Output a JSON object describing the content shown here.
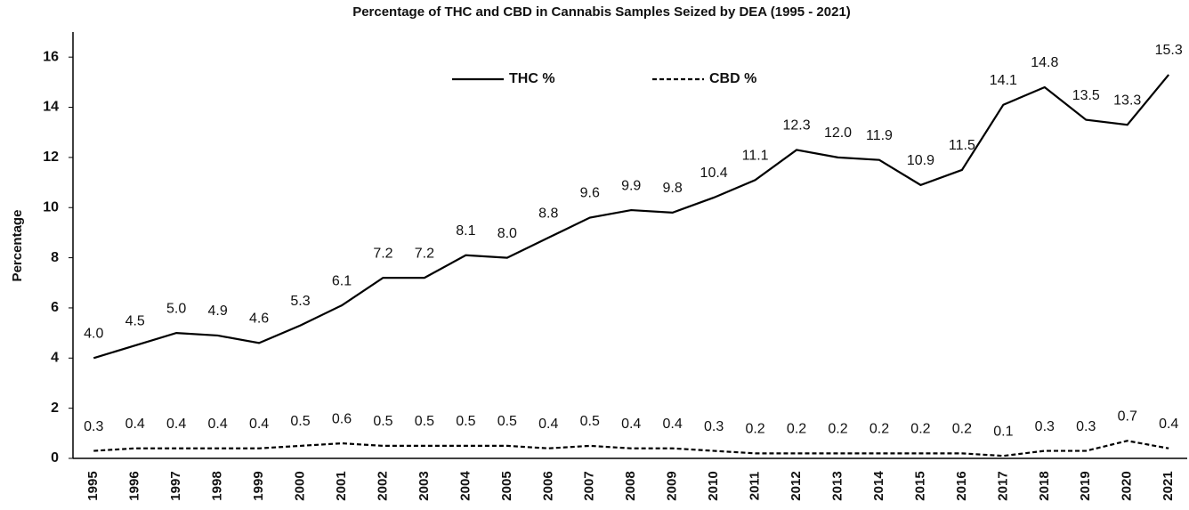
{
  "chart_data": {
    "type": "line",
    "title": "Percentage of THC and CBD in Cannabis Samples Seized by DEA (1995 - 2021)",
    "y_label": "Percentage",
    "categories": [
      "1995",
      "1996",
      "1997",
      "1998",
      "1999",
      "2000",
      "2001",
      "2002",
      "2003",
      "2004",
      "2005",
      "2006",
      "2007",
      "2008",
      "2009",
      "2010",
      "2011",
      "2012",
      "2013",
      "2014",
      "2015",
      "2016",
      "2017",
      "2018",
      "2019",
      "2020",
      "2021"
    ],
    "series": [
      {
        "name": "THC %",
        "color": "#000000",
        "line_style": "solid",
        "values": [
          4.0,
          4.5,
          5.0,
          4.9,
          4.6,
          5.3,
          6.1,
          7.2,
          7.2,
          8.1,
          8.0,
          8.8,
          9.6,
          9.9,
          9.8,
          10.4,
          11.1,
          12.3,
          12.0,
          11.9,
          10.9,
          11.5,
          14.1,
          14.8,
          13.5,
          13.3,
          15.3
        ],
        "value_labels": [
          "4.0",
          "4.5",
          "5.0",
          "4.9",
          "4.6",
          "5.3",
          "6.1",
          "7.2",
          "7.2",
          "8.1",
          "8.0",
          "8.8",
          "9.6",
          "9.9",
          "9.8",
          "10.4",
          "11.1",
          "12.3",
          "12.0",
          "11.9",
          "10.9",
          "11.5",
          "14.1",
          "14.8",
          "13.5",
          "13.3",
          "15.3"
        ]
      },
      {
        "name": "CBD %",
        "color": "#000000",
        "line_style": "dashed",
        "values": [
          0.3,
          0.4,
          0.4,
          0.4,
          0.4,
          0.5,
          0.6,
          0.5,
          0.5,
          0.5,
          0.5,
          0.4,
          0.5,
          0.4,
          0.4,
          0.3,
          0.2,
          0.2,
          0.2,
          0.2,
          0.2,
          0.2,
          0.1,
          0.3,
          0.3,
          0.7,
          0.4
        ],
        "value_labels": [
          "0.3",
          "0.4",
          "0.4",
          "0.4",
          "0.4",
          "0.5",
          "0.6",
          "0.5",
          "0.5",
          "0.5",
          "0.5",
          "0.4",
          "0.5",
          "0.4",
          "0.4",
          "0.3",
          "0.2",
          "0.2",
          "0.2",
          "0.2",
          "0.2",
          "0.2",
          "0.1",
          "0.3",
          "0.3",
          "0.7",
          "0.4"
        ]
      }
    ],
    "ylim": [
      0,
      17
    ],
    "yticks": [
      0,
      2,
      4,
      6,
      8,
      10,
      12,
      14,
      16
    ],
    "grid": false,
    "legend": "top"
  }
}
